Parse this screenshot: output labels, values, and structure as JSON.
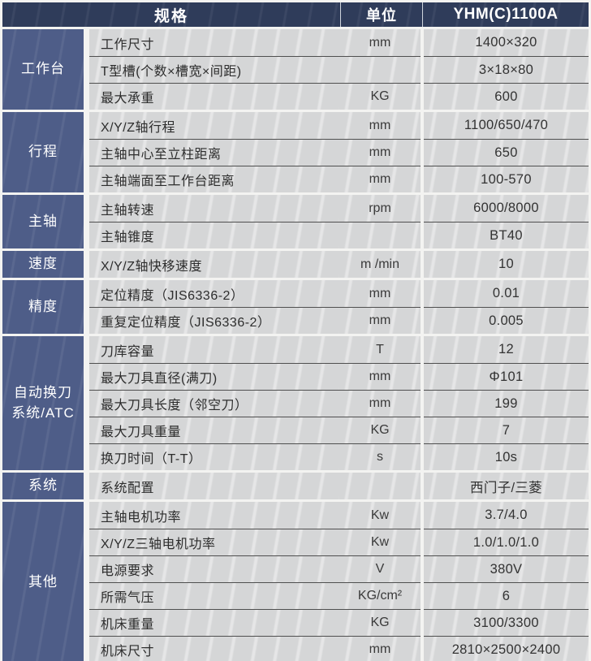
{
  "title": "YHM(C)1100A 规格表",
  "colors": {
    "header_bg": "#2f3c5a",
    "category_bg": "#4e5d88",
    "row_bg": "#d5d6d7",
    "row_separator": "#4f4f4f",
    "gap": "#f3f3f1",
    "header_text": "#ffffff",
    "body_text": "#2d2d2d"
  },
  "header": {
    "spec": "规格",
    "unit": "单位",
    "model": "YHM(C)1100A"
  },
  "groups": [
    {
      "category": "工作台",
      "rows": [
        {
          "name": "工作尺寸",
          "unit": "mm",
          "value": "1400×320"
        },
        {
          "name": "T型槽(个数×槽宽×间距)",
          "unit": "",
          "value": "3×18×80"
        },
        {
          "name": "最大承重",
          "unit": "KG",
          "value": "600"
        }
      ]
    },
    {
      "category": "行程",
      "rows": [
        {
          "name": "X/Y/Z轴行程",
          "unit": "mm",
          "value": "1100/650/470"
        },
        {
          "name": "主轴中心至立柱距离",
          "unit": "mm",
          "value": "650"
        },
        {
          "name": "主轴端面至工作台距离",
          "unit": "mm",
          "value": "100-570"
        }
      ]
    },
    {
      "category": "主轴",
      "rows": [
        {
          "name": "主轴转速",
          "unit": "rpm",
          "value": "6000/8000"
        },
        {
          "name": "主轴锥度",
          "unit": "",
          "value": "BT40"
        }
      ]
    },
    {
      "category": "速度",
      "rows": [
        {
          "name": "X/Y/Z轴快移速度",
          "unit": "m /min",
          "value": "10"
        }
      ]
    },
    {
      "category": "精度",
      "rows": [
        {
          "name": "定位精度（JIS6336-2）",
          "unit": "mm",
          "value": "0.01"
        },
        {
          "name": "重复定位精度（JIS6336-2）",
          "unit": "mm",
          "value": "0.005"
        }
      ]
    },
    {
      "category": "自动换刀\n系统/ATC",
      "rows": [
        {
          "name": "刀库容量",
          "unit": "T",
          "value": "12"
        },
        {
          "name": "最大刀具直径(满刀)",
          "unit": "mm",
          "value": "Φ101"
        },
        {
          "name": "最大刀具长度（邻空刀）",
          "unit": "mm",
          "value": "199"
        },
        {
          "name": "最大刀具重量",
          "unit": "KG",
          "value": "7"
        },
        {
          "name": "换刀时间（T-T）",
          "unit": "s",
          "value": "10s"
        }
      ]
    },
    {
      "category": "系统",
      "rows": [
        {
          "name": "系统配置",
          "unit": "",
          "value": "西门子/三菱"
        }
      ]
    },
    {
      "category": "其他",
      "rows": [
        {
          "name": "主轴电机功率",
          "unit": "Kw",
          "value": "3.7/4.0"
        },
        {
          "name": "X/Y/Z三轴电机功率",
          "unit": "Kw",
          "value": "1.0/1.0/1.0"
        },
        {
          "name": "电源要求",
          "unit": "V",
          "value": "380V"
        },
        {
          "name": "所需气压",
          "unit": "KG/cm²",
          "value": "6"
        },
        {
          "name": "机床重量",
          "unit": "KG",
          "value": "3100/3300"
        },
        {
          "name": "机床尺寸",
          "unit": "mm",
          "value": "2810×2500×2400"
        }
      ]
    }
  ]
}
